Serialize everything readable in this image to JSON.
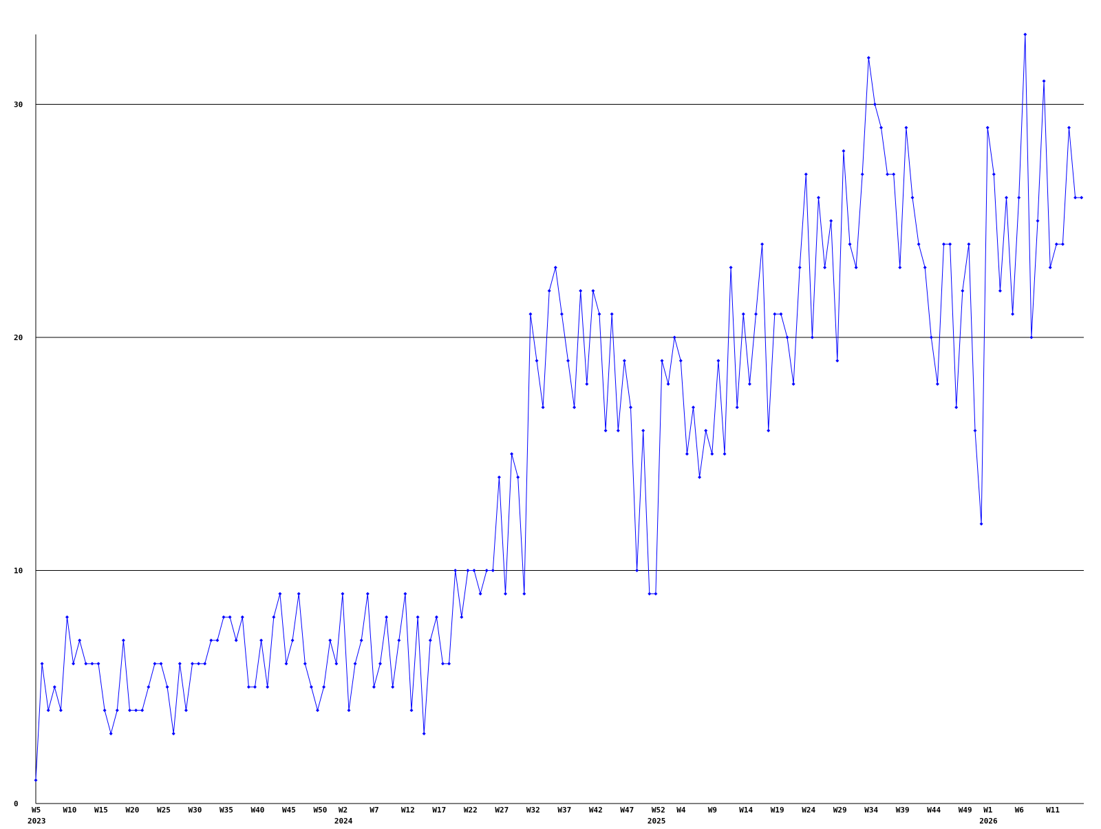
{
  "chart_data": {
    "type": "line",
    "color": "#0000ff",
    "grid": true,
    "ylim": [
      0,
      33
    ],
    "yticks": [
      0,
      10,
      20,
      30
    ],
    "categories": [
      "W5",
      null,
      null,
      null,
      null,
      "W10",
      null,
      null,
      null,
      null,
      "W15",
      null,
      null,
      null,
      null,
      "W20",
      null,
      null,
      null,
      null,
      "W25",
      null,
      null,
      null,
      null,
      "W30",
      null,
      null,
      null,
      null,
      "W35",
      null,
      null,
      null,
      null,
      "W40",
      null,
      null,
      null,
      null,
      "W45",
      null,
      null,
      null,
      null,
      "W50",
      null,
      null,
      null,
      "W2",
      null,
      null,
      null,
      null,
      "W7",
      null,
      null,
      null,
      null,
      "W12",
      null,
      null,
      null,
      null,
      "W17",
      null,
      null,
      null,
      null,
      "W22",
      null,
      null,
      null,
      null,
      "W27",
      null,
      null,
      null,
      null,
      "W32",
      null,
      null,
      null,
      null,
      "W37",
      null,
      null,
      null,
      null,
      "W42",
      null,
      null,
      null,
      null,
      "W47",
      null,
      null,
      null,
      null,
      "W52",
      null,
      null,
      null,
      "W4",
      null,
      null,
      null,
      null,
      "W9",
      null,
      null,
      null,
      null,
      "W14",
      null,
      null,
      null,
      null,
      "W19",
      null,
      null,
      null,
      null,
      "W24",
      null,
      null,
      null,
      null,
      "W29",
      null,
      null,
      null,
      null,
      "W34",
      null,
      null,
      null,
      null,
      "W39",
      null,
      null,
      null,
      null,
      "W44",
      null,
      null,
      null,
      null,
      "W49",
      null,
      null,
      null,
      "W1",
      null,
      null,
      null,
      null,
      "W6",
      null,
      null,
      null,
      null,
      "W11",
      null,
      null,
      null,
      null,
      null
    ],
    "x_group_labels": [
      {
        "value": 0,
        "label": "2023"
      },
      {
        "value": 49,
        "label": "2024"
      },
      {
        "value": 99,
        "label": "2025"
      },
      {
        "value": 152,
        "label": "2026"
      }
    ],
    "values": [
      1,
      6,
      4,
      5,
      4,
      8,
      6,
      7,
      6,
      6,
      6,
      4,
      3,
      4,
      7,
      4,
      4,
      4,
      5,
      6,
      6,
      5,
      3,
      6,
      4,
      6,
      6,
      6,
      7,
      7,
      8,
      8,
      7,
      8,
      5,
      5,
      7,
      5,
      8,
      9,
      6,
      7,
      9,
      6,
      5,
      4,
      5,
      7,
      6,
      9,
      4,
      6,
      7,
      9,
      5,
      6,
      8,
      5,
      7,
      9,
      4,
      8,
      3,
      7,
      8,
      6,
      6,
      10,
      8,
      10,
      10,
      9,
      10,
      10,
      14,
      9,
      15,
      14,
      9,
      21,
      19,
      17,
      22,
      23,
      21,
      19,
      17,
      22,
      18,
      22,
      21,
      16,
      21,
      16,
      19,
      17,
      10,
      16,
      9,
      9,
      19,
      18,
      20,
      19,
      15,
      17,
      14,
      16,
      15,
      19,
      15,
      23,
      17,
      21,
      18,
      21,
      24,
      16,
      21,
      21,
      20,
      18,
      23,
      27,
      20,
      26,
      23,
      25,
      19,
      28,
      24,
      23,
      27,
      32,
      30,
      29,
      27,
      27,
      23,
      29,
      26,
      24,
      23,
      20,
      18,
      24,
      24,
      17,
      22,
      24,
      16,
      12,
      29,
      27,
      22,
      26,
      21,
      26,
      33,
      20,
      25,
      31,
      23,
      24,
      24,
      29,
      26,
      26
    ]
  }
}
